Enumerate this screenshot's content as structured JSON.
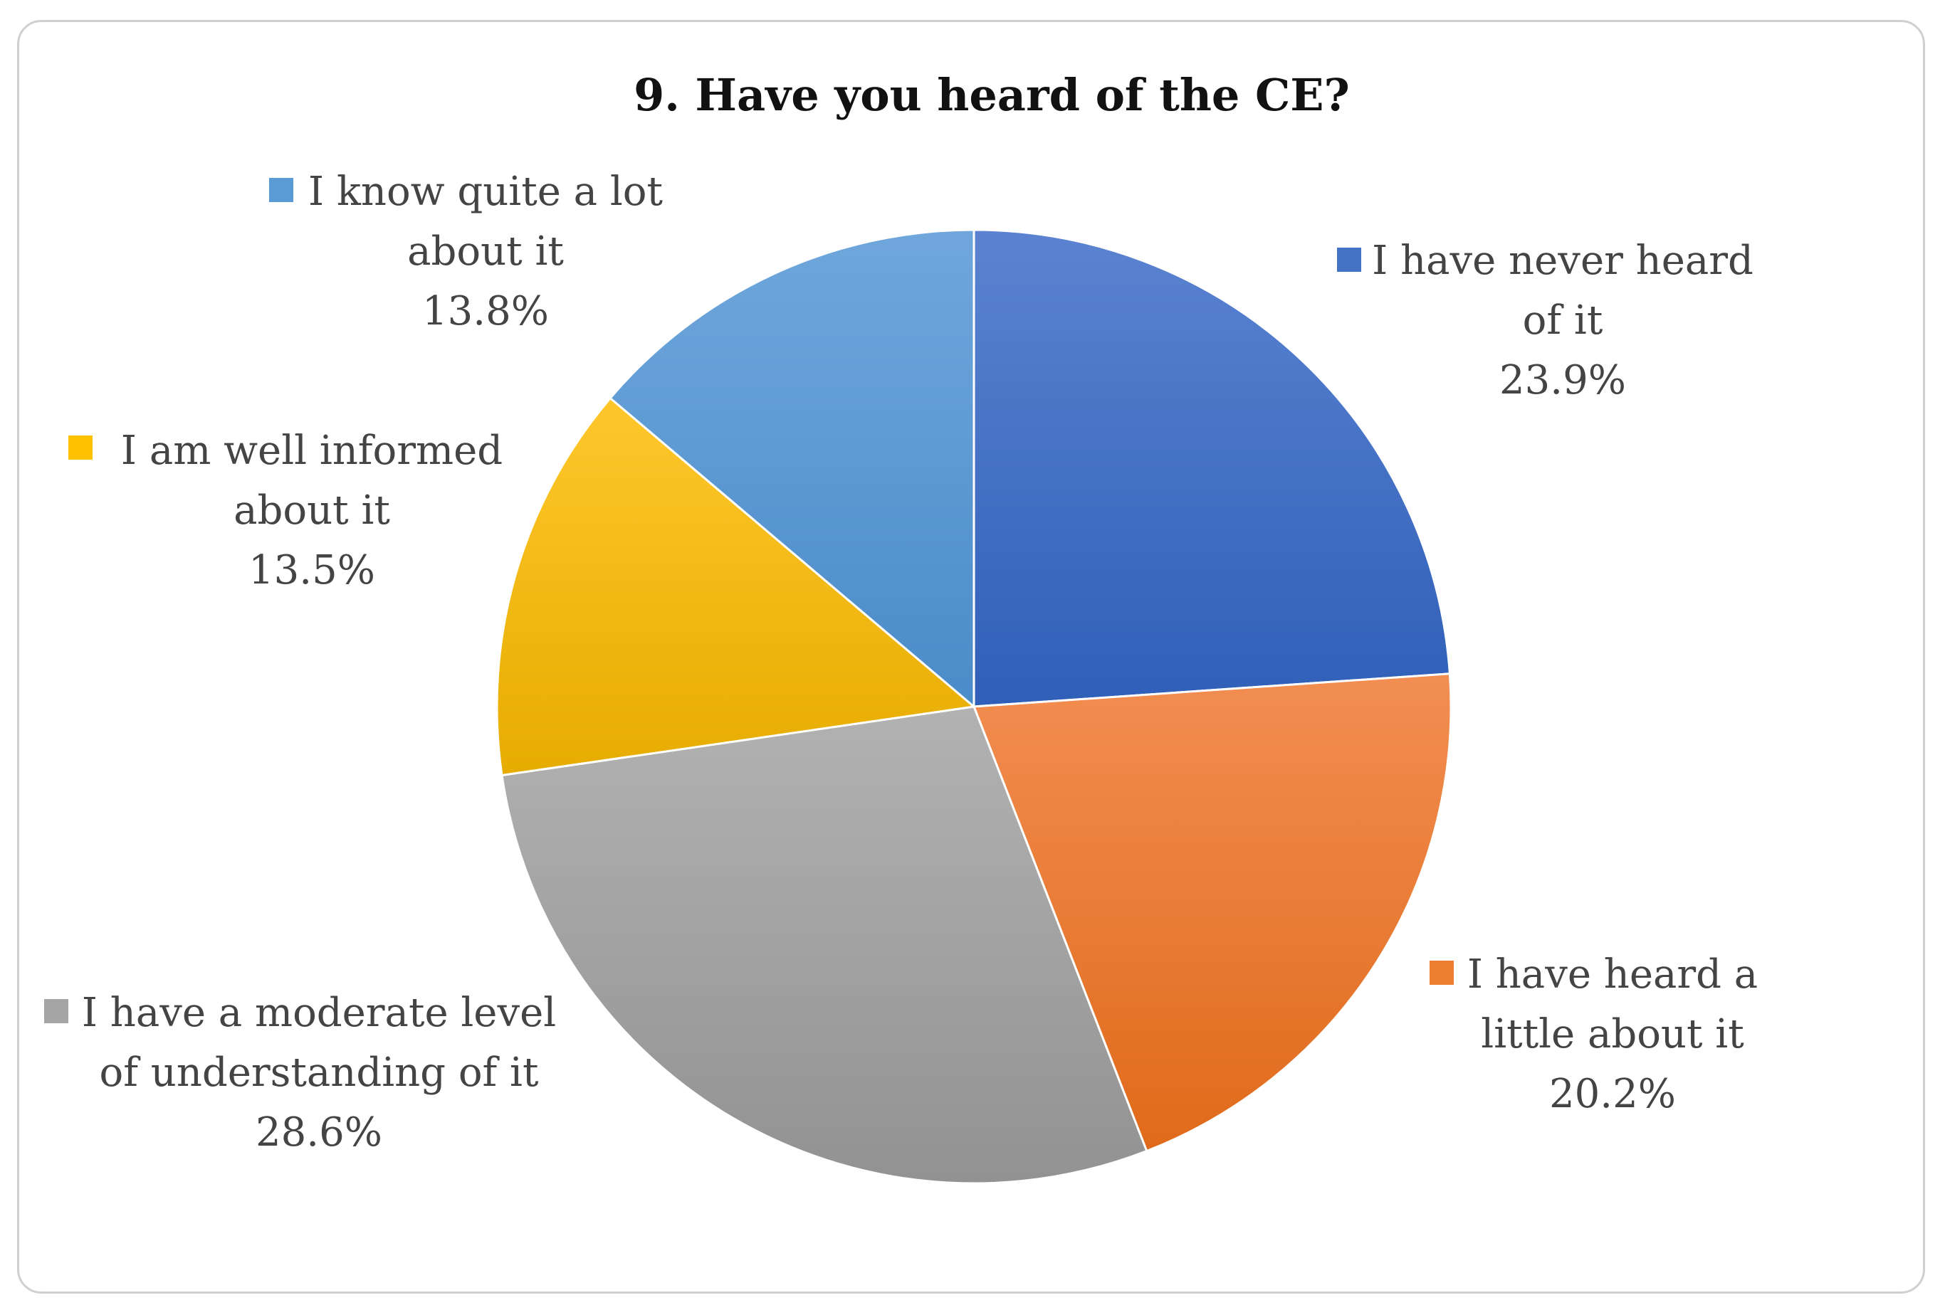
{
  "chart_data": {
    "type": "pie",
    "title": "9. Have you heard of the CE?",
    "start_angle_deg": 0,
    "direction": "clockwise",
    "slices": [
      {
        "label": "I have never heard of it",
        "label_lines": [
          "I have never heard",
          "of it"
        ],
        "value": 23.9,
        "value_label": "23.9%",
        "color": "#4472C4",
        "color_light": "#5B83D1",
        "color_dark": "#2F5FB8"
      },
      {
        "label": "I have heard a little about it",
        "label_lines": [
          "I have heard a",
          "little about it"
        ],
        "value": 20.2,
        "value_label": "20.2%",
        "color": "#ED7D31",
        "color_light": "#F28E52",
        "color_dark": "#E06A1A"
      },
      {
        "label": "I have a moderate level of understanding of it",
        "label_lines": [
          "I have a moderate level",
          "of understanding of it"
        ],
        "value": 28.6,
        "value_label": "28.6%",
        "color": "#A5A5A5",
        "color_light": "#B2B2B2",
        "color_dark": "#929292"
      },
      {
        "label": "I am well informed about it",
        "label_lines": [
          "I am well informed",
          "about it"
        ],
        "value": 13.5,
        "value_label": "13.5%",
        "color": "#FFC000",
        "color_light": "#FFC72C",
        "color_dark": "#E6AC00"
      },
      {
        "label": "I know quite a lot about it",
        "label_lines": [
          "I know quite a lot",
          "about it"
        ],
        "value": 13.8,
        "value_label": "13.8%",
        "color": "#5B9BD5",
        "color_light": "#6FA7DC",
        "color_dark": "#4A8BC9"
      }
    ]
  }
}
